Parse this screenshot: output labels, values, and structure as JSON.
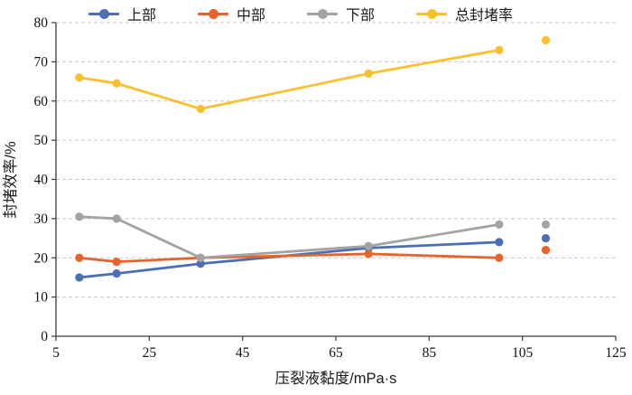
{
  "chart_data": {
    "type": "line",
    "x": [
      10,
      18,
      36,
      72,
      100
    ],
    "series": [
      {
        "id": "upper",
        "name": "上部",
        "color": "#4a6fb5",
        "values": [
          15,
          16,
          18.5,
          22.5,
          24
        ],
        "extra_point": {
          "x": 110,
          "y": 25
        }
      },
      {
        "id": "middle",
        "name": "中部",
        "color": "#e8622c",
        "values": [
          20,
          19,
          20,
          21,
          20
        ],
        "extra_point": {
          "x": 110,
          "y": 22
        }
      },
      {
        "id": "lower",
        "name": "下部",
        "color": "#a3a3a3",
        "values": [
          30.5,
          30,
          20,
          23,
          28.5
        ],
        "extra_point": {
          "x": 110,
          "y": 28.5
        }
      },
      {
        "id": "total",
        "name": "总封堵率",
        "color": "#fcbf2e",
        "values": [
          66,
          64.5,
          58,
          67,
          73
        ],
        "extra_point": {
          "x": 110,
          "y": 75.5
        }
      }
    ],
    "xlabel": "压裂液黏度/mPa·s",
    "ylabel": "封堵效率/%",
    "xlim": [
      5,
      125
    ],
    "ylim": [
      0,
      80
    ],
    "xticks": [
      5,
      25,
      45,
      65,
      85,
      105,
      125
    ],
    "yticks": [
      0,
      10,
      20,
      30,
      40,
      50,
      60,
      70,
      80
    ],
    "grid": "horizontal-dashed",
    "legend_position": "top"
  }
}
